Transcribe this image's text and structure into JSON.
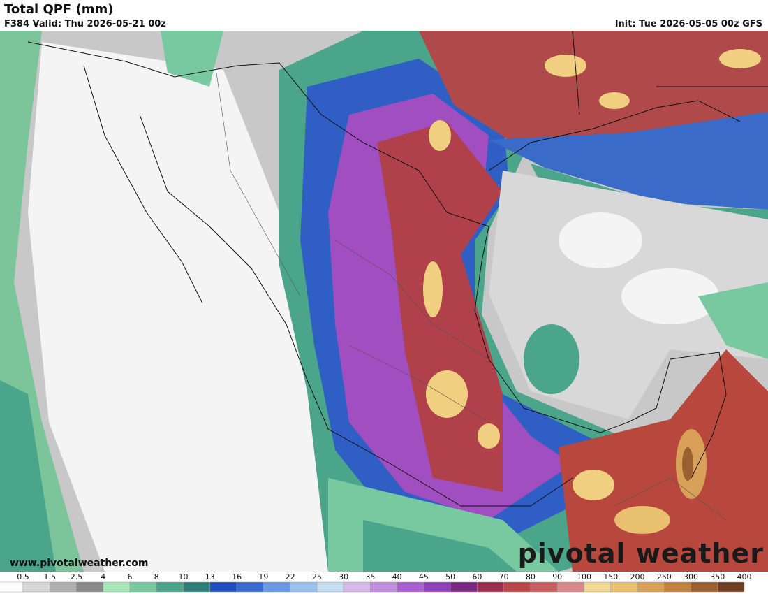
{
  "header": {
    "title": "Total QPF (mm)",
    "valid": "F384 Valid: Thu 2026-05-21 00z",
    "init": "Init: Tue 2026-05-05 00z GFS"
  },
  "footer": {
    "url": "www.pivotalweather.com",
    "brand": "pivotal weather"
  },
  "colorbar": {
    "labels": [
      "0.5",
      "1.5",
      "2.5",
      "4",
      "6",
      "8",
      "10",
      "13",
      "16",
      "19",
      "22",
      "25",
      "30",
      "35",
      "40",
      "45",
      "50",
      "60",
      "70",
      "80",
      "90",
      "100",
      "150",
      "200",
      "250",
      "300",
      "350",
      "400"
    ],
    "colors": [
      "#ffffff",
      "#d6d6d6",
      "#b0b0b0",
      "#8a8a8a",
      "#a8e6b8",
      "#78c8a0",
      "#4aa58a",
      "#2b7f78",
      "#2050c0",
      "#3a6cd0",
      "#6a98e0",
      "#98c0ec",
      "#c4dcf0",
      "#d4b8e8",
      "#c08ee0",
      "#a860d0",
      "#9040b8",
      "#7a2a80",
      "#9a3050",
      "#b84848",
      "#c86060",
      "#d88888",
      "#f0d890",
      "#e8c070",
      "#d8a058",
      "#c08040",
      "#9a6030",
      "#704020"
    ]
  }
}
